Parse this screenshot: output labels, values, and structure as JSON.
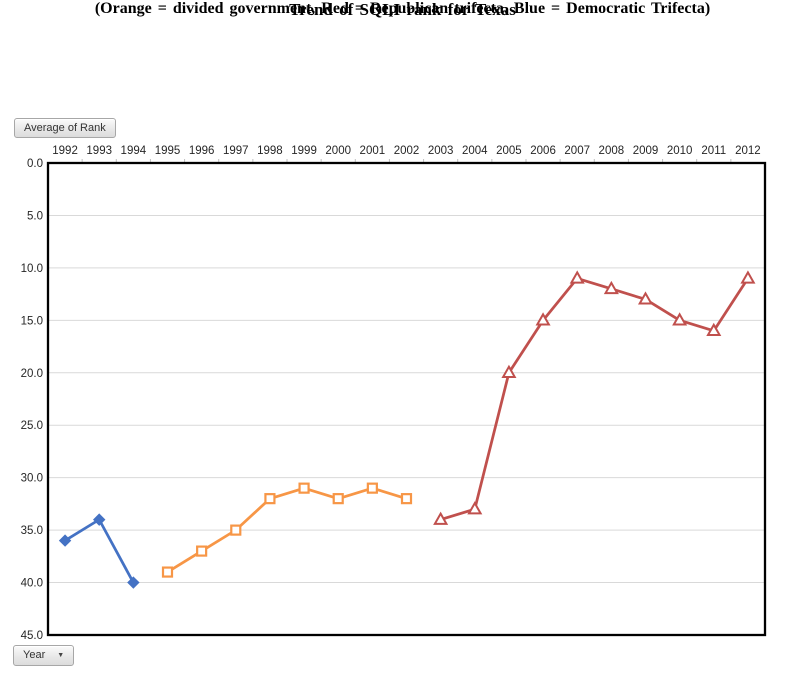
{
  "header": {
    "title": "Trend of SQLI rank for Texas",
    "subtitle": "(Orange = divided government, Red = Republican trifecta, Blue = Democratic Trifecta)"
  },
  "pivot_controls": {
    "value_button_label": "Average of Rank",
    "axis_button_label": "Year",
    "dropdown_arrow": "▼"
  },
  "chart_data": {
    "type": "line",
    "title": "Trend of SQLI rank for Texas",
    "xlabel": "Year",
    "ylabel": "Average of Rank",
    "x_axis_position": "top",
    "grid": "horizontal only",
    "legend": "none (colors explained in subtitle)",
    "categories": [
      1992,
      1993,
      1994,
      1995,
      1996,
      1997,
      1998,
      1999,
      2000,
      2001,
      2002,
      2003,
      2004,
      2005,
      2006,
      2007,
      2008,
      2009,
      2010,
      2011,
      2012
    ],
    "y_axis": {
      "min": 0,
      "max": 45,
      "tick_interval": 5,
      "tick_labels": [
        "0.0",
        "5.0",
        "10.0",
        "15.0",
        "20.0",
        "25.0",
        "30.0",
        "35.0",
        "40.0",
        "45.0"
      ],
      "orientation": "0 at top, increases downward"
    },
    "colors": {
      "democratic_trifecta": "#4472C4",
      "divided_government": "#F79646",
      "republican_trifecta": "#C0504D",
      "gridline": "#D9D9D9",
      "plot_border": "#000000",
      "tick": "#BFBFBF",
      "axis_text": "#262626"
    },
    "series": [
      {
        "name": "Democratic Trifecta",
        "color": "#4472C4",
        "marker": "filled-diamond",
        "years": [
          1992,
          1993,
          1994
        ],
        "values": [
          36,
          34,
          40
        ]
      },
      {
        "name": "Divided government",
        "color": "#F79646",
        "marker": "open-square",
        "years": [
          1995,
          1996,
          1997,
          1998,
          1999,
          2000,
          2001,
          2002
        ],
        "values": [
          39,
          37,
          35,
          32,
          31,
          32,
          31,
          32
        ]
      },
      {
        "name": "Republican trifecta",
        "color": "#C0504D",
        "marker": "open-triangle",
        "years": [
          2003,
          2004,
          2005,
          2006,
          2007,
          2008,
          2009,
          2010,
          2011,
          2012
        ],
        "values": [
          34,
          33,
          20,
          15,
          11,
          12,
          13,
          15,
          16,
          11
        ]
      }
    ]
  }
}
